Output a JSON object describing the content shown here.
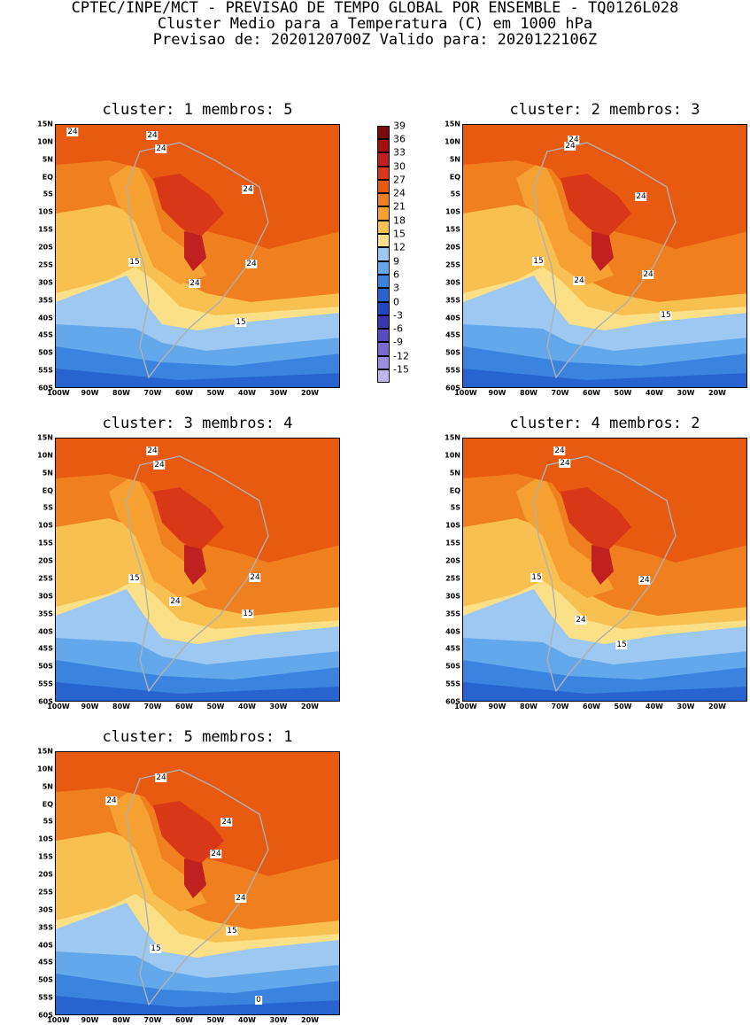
{
  "header": {
    "line1": "CPTEC/INPE/MCT - PREVISAO DE TEMPO GLOBAL POR ENSEMBLE - TQ0126L028",
    "line2": "Cluster Medio para a Temperatura (C) em 1000 hPa",
    "line3": "Previsao de: 2020120700Z   Valido para: 2020122106Z"
  },
  "axes": {
    "lat_labels": [
      "15N",
      "10N",
      "5N",
      "EQ",
      "5S",
      "10S",
      "15S",
      "20S",
      "25S",
      "30S",
      "35S",
      "40S",
      "45S",
      "50S",
      "55S",
      "60S"
    ],
    "lon_labels": [
      "100W",
      "90W",
      "80W",
      "70W",
      "60W",
      "50W",
      "40W",
      "30W",
      "20W"
    ]
  },
  "colorbar": {
    "labels": [
      "39",
      "36",
      "33",
      "30",
      "27",
      "24",
      "21",
      "18",
      "15",
      "12",
      "9",
      "6",
      "3",
      "0",
      "-3",
      "-6",
      "-9",
      "-12",
      "-15"
    ],
    "colors": [
      "#7a0a0a",
      "#a01010",
      "#c02020",
      "#d83818",
      "#e85a10",
      "#f07f20",
      "#f5a030",
      "#f8c050",
      "#fbe088",
      "#9cc8f2",
      "#64a8ec",
      "#3a84e0",
      "#2864d0",
      "#2048c0",
      "#3a36b0",
      "#5a4ac0",
      "#7a6ad0",
      "#9c8ee0",
      "#c0b6ee"
    ]
  },
  "panels": [
    {
      "title": "cluster: 1   membros: 5",
      "labels": [
        "24",
        "24",
        "24",
        "24",
        "24",
        "24",
        "15",
        "15"
      ]
    },
    {
      "title": "cluster: 2   membros: 3",
      "labels": [
        "24",
        "24",
        "24",
        "24",
        "24",
        "15",
        "15"
      ]
    },
    {
      "title": "cluster: 3   membros: 4",
      "labels": [
        "24",
        "24",
        "24",
        "24",
        "15",
        "15"
      ]
    },
    {
      "title": "cluster: 4   membros: 2",
      "labels": [
        "24",
        "24",
        "24",
        "24",
        "15",
        "15"
      ]
    },
    {
      "title": "cluster: 5   membros: 1",
      "labels": [
        "24",
        "24",
        "24",
        "24",
        "24",
        "15",
        "15",
        "0"
      ]
    }
  ]
}
